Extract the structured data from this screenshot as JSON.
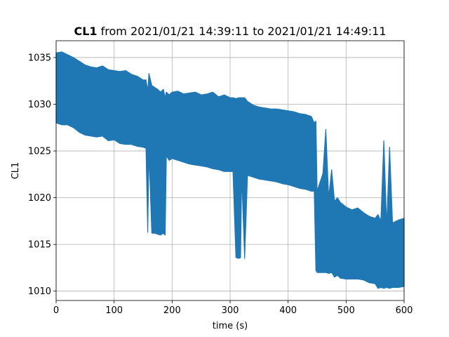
{
  "chart_data": {
    "type": "line",
    "title": {
      "bold": "CL1",
      "rest": " from 2021/01/21 14:39:11 to 2021/01/21 14:49:11"
    },
    "xlabel": "time (s)",
    "ylabel": "CL1",
    "xlim": [
      0,
      600
    ],
    "ylim": [
      1009,
      1036.8
    ],
    "xticks": [
      0,
      100,
      200,
      300,
      400,
      500,
      600
    ],
    "yticks": [
      1010,
      1015,
      1020,
      1025,
      1030,
      1035
    ],
    "grid": true,
    "series": [
      {
        "color": "#1f77b4",
        "x": [
          0,
          10,
          20,
          30,
          40,
          50,
          60,
          70,
          80,
          90,
          100,
          110,
          120,
          130,
          140,
          150,
          155,
          158,
          160,
          165,
          170,
          175,
          180,
          185,
          188,
          190,
          195,
          200,
          210,
          220,
          230,
          240,
          250,
          260,
          270,
          280,
          290,
          300,
          305,
          310,
          315,
          318,
          320,
          325,
          330,
          340,
          350,
          360,
          370,
          380,
          390,
          400,
          410,
          420,
          430,
          440,
          445,
          448,
          450,
          460,
          465,
          470,
          475,
          480,
          485,
          490,
          500,
          510,
          520,
          530,
          540,
          550,
          555,
          560,
          565,
          570,
          575,
          580,
          590,
          600
        ],
        "upper": [
          1035.5,
          1035.6,
          1035.3,
          1035.0,
          1034.6,
          1034.2,
          1034.0,
          1033.9,
          1034.1,
          1033.7,
          1033.6,
          1033.5,
          1033.6,
          1033.2,
          1033.0,
          1032.6,
          1032.6,
          1031.4,
          1033.3,
          1032.0,
          1031.8,
          1031.6,
          1031.3,
          1031.6,
          1030.7,
          1031.3,
          1031.0,
          1031.3,
          1031.4,
          1031.1,
          1031.2,
          1031.3,
          1031.0,
          1031.1,
          1031.3,
          1030.8,
          1031.0,
          1030.7,
          1030.7,
          1030.6,
          1030.7,
          1030.7,
          1030.7,
          1030.7,
          1030.3,
          1029.9,
          1029.7,
          1029.6,
          1029.5,
          1029.5,
          1029.4,
          1029.3,
          1029.2,
          1029.0,
          1028.9,
          1028.7,
          1028.0,
          1028.2,
          1020.7,
          1022.6,
          1027.3,
          1020.0,
          1023.0,
          1019.6,
          1020.0,
          1019.5,
          1019.0,
          1018.7,
          1018.9,
          1018.4,
          1018.0,
          1017.8,
          1018.2,
          1017.5,
          1026.1,
          1016.9,
          1025.4,
          1017.3,
          1017.6,
          1017.8
        ],
        "lower": [
          1028.0,
          1027.8,
          1027.8,
          1027.5,
          1027.0,
          1026.7,
          1026.6,
          1026.5,
          1026.6,
          1026.1,
          1026.2,
          1025.8,
          1025.7,
          1025.7,
          1025.5,
          1025.4,
          1025.3,
          1016.3,
          1025.0,
          1016.2,
          1016.2,
          1016.1,
          1016.0,
          1016.2,
          1016.0,
          1024.5,
          1024.0,
          1024.2,
          1024.0,
          1023.8,
          1023.6,
          1023.5,
          1023.4,
          1023.3,
          1023.1,
          1023.0,
          1022.8,
          1022.8,
          1022.8,
          1013.6,
          1013.5,
          1013.6,
          1022.5,
          1013.5,
          1022.4,
          1022.2,
          1022.0,
          1021.9,
          1021.8,
          1021.7,
          1021.5,
          1021.4,
          1021.2,
          1021.0,
          1020.9,
          1020.7,
          1020.7,
          1012.2,
          1012.0,
          1012.0,
          1012.0,
          1011.9,
          1012.0,
          1011.5,
          1011.7,
          1011.4,
          1011.3,
          1011.3,
          1011.3,
          1011.2,
          1010.9,
          1010.8,
          1010.3,
          1010.4,
          1010.3,
          1010.4,
          1010.3,
          1010.4,
          1010.4,
          1010.5
        ]
      }
    ]
  }
}
